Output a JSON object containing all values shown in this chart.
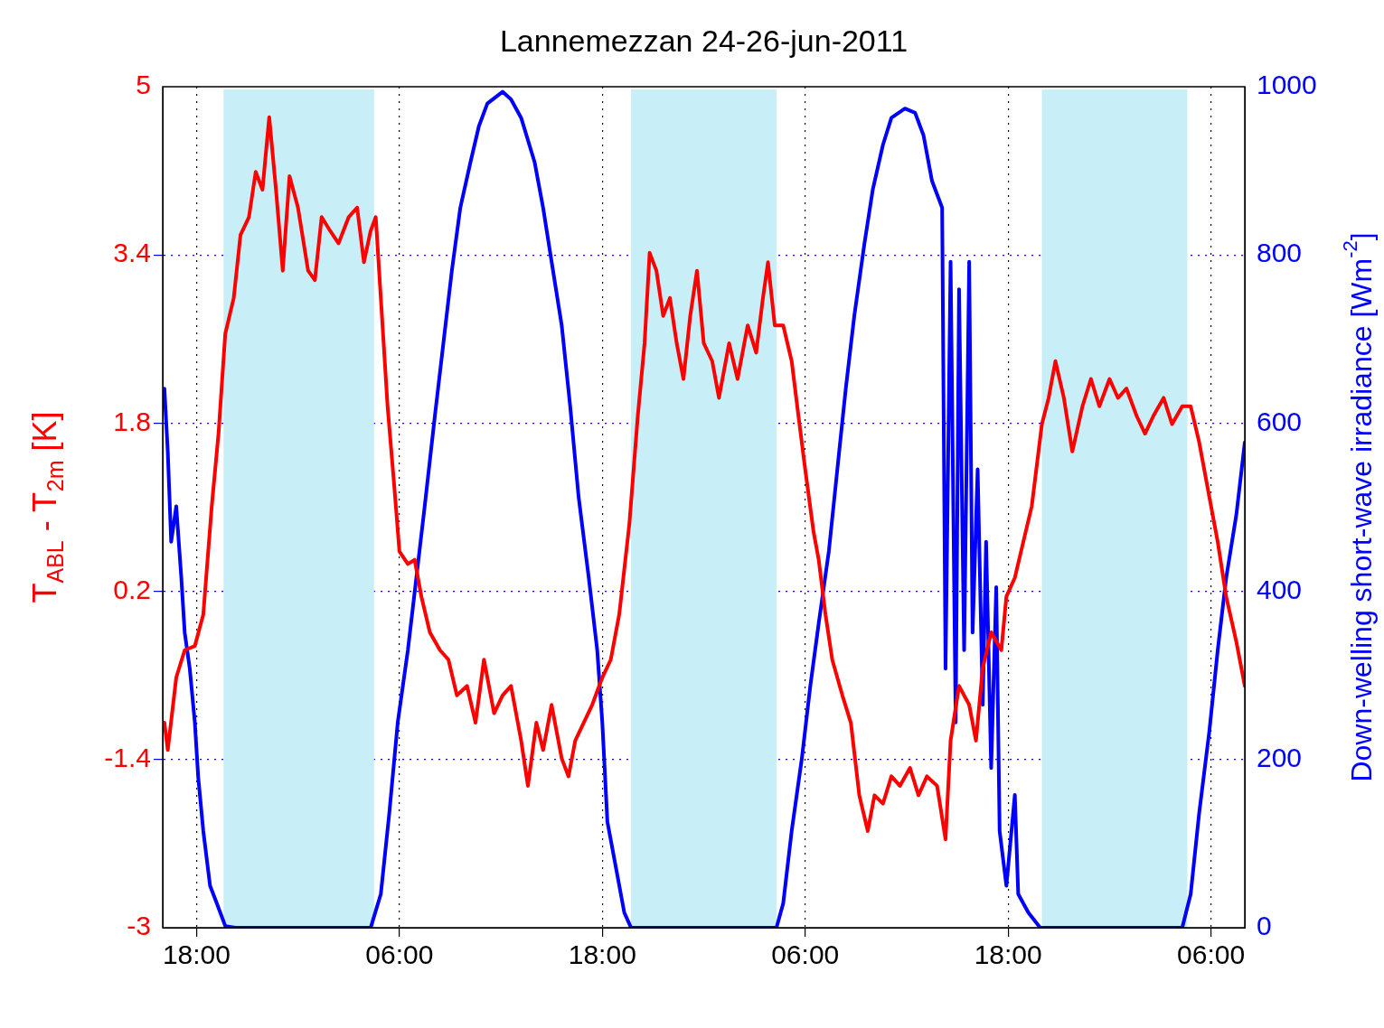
{
  "chart_data": {
    "type": "line",
    "title": "Lannemezzan 24-26-jun-2011",
    "ylabel": "T$_{ABL}$ - T$_{2m}$ [K]",
    "y2label": "Down-welling short-wave irradiance [Wm$^{-2}$]",
    "xlim": [
      "2011-06-24T16:00",
      "2011-06-27T08:00"
    ],
    "xticks": [
      {
        "value": "2011-06-24T18:00",
        "label": "18:00"
      },
      {
        "value": "2011-06-25T06:00",
        "label": "06:00"
      },
      {
        "value": "2011-06-25T18:00",
        "label": "18:00"
      },
      {
        "value": "2011-06-26T06:00",
        "label": "06:00"
      },
      {
        "value": "2011-06-26T18:00",
        "label": "18:00"
      },
      {
        "value": "2011-06-27T06:00",
        "label": "06:00"
      }
    ],
    "ylim": [
      -3,
      5
    ],
    "yticks": [
      -3,
      -1.4,
      0.2,
      1.8,
      3.4,
      5
    ],
    "y2lim": [
      0,
      1000
    ],
    "y2ticks": [
      0,
      200,
      400,
      600,
      800,
      1000
    ],
    "grid": true,
    "legend": false,
    "marker": "none",
    "line_style": "solid",
    "bands": [
      {
        "axis": "x",
        "from": "2011-06-24T19:36",
        "to": "2011-06-25T04:30",
        "color": "#c8eef8"
      },
      {
        "axis": "x",
        "from": "2011-06-25T19:42",
        "to": "2011-06-26T04:18",
        "color": "#c8eef8"
      },
      {
        "axis": "x",
        "from": "2011-06-26T20:00",
        "to": "2011-06-27T04:36",
        "color": "#c8eef8"
      }
    ],
    "series": [
      {
        "color": "#ff0000",
        "x": [
          "2011-06-24T16:06",
          "2011-06-24T16:18",
          "2011-06-24T16:48",
          "2011-06-24T17:18",
          "2011-06-24T17:54",
          "2011-06-24T18:24",
          "2011-06-24T18:54",
          "2011-06-24T19:18",
          "2011-06-24T19:42",
          "2011-06-24T20:12",
          "2011-06-24T20:36",
          "2011-06-24T21:06",
          "2011-06-24T21:30",
          "2011-06-24T21:54",
          "2011-06-24T22:18",
          "2011-06-24T22:42",
          "2011-06-24T23:06",
          "2011-06-24T23:30",
          "2011-06-25T00:00",
          "2011-06-25T00:36",
          "2011-06-25T01:00",
          "2011-06-25T01:24",
          "2011-06-25T01:54",
          "2011-06-25T02:24",
          "2011-06-25T03:00",
          "2011-06-25T03:30",
          "2011-06-25T03:54",
          "2011-06-25T04:18",
          "2011-06-25T04:36",
          "2011-06-25T04:54",
          "2011-06-25T05:18",
          "2011-06-25T05:42",
          "2011-06-25T06:00",
          "2011-06-25T06:30",
          "2011-06-25T06:54",
          "2011-06-25T07:18",
          "2011-06-25T07:48",
          "2011-06-25T08:24",
          "2011-06-25T08:54",
          "2011-06-25T09:24",
          "2011-06-25T10:00",
          "2011-06-25T10:30",
          "2011-06-25T11:00",
          "2011-06-25T11:36",
          "2011-06-25T12:06",
          "2011-06-25T12:36",
          "2011-06-25T13:12",
          "2011-06-25T13:36",
          "2011-06-25T14:06",
          "2011-06-25T14:30",
          "2011-06-25T15:00",
          "2011-06-25T15:36",
          "2011-06-25T16:00",
          "2011-06-25T16:24",
          "2011-06-25T16:54",
          "2011-06-25T17:24",
          "2011-06-25T18:00",
          "2011-06-25T18:30",
          "2011-06-25T19:00",
          "2011-06-25T19:36",
          "2011-06-25T20:06",
          "2011-06-25T20:30",
          "2011-06-25T20:48",
          "2011-06-25T21:12",
          "2011-06-25T21:36",
          "2011-06-25T22:00",
          "2011-06-25T22:24",
          "2011-06-25T22:48",
          "2011-06-25T23:12",
          "2011-06-25T23:36",
          "2011-06-26T00:00",
          "2011-06-26T00:30",
          "2011-06-26T00:54",
          "2011-06-26T01:30",
          "2011-06-26T02:00",
          "2011-06-26T02:36",
          "2011-06-26T03:06",
          "2011-06-26T03:30",
          "2011-06-26T03:48",
          "2011-06-26T04:12",
          "2011-06-26T04:42",
          "2011-06-26T05:12",
          "2011-06-26T05:36",
          "2011-06-26T06:00",
          "2011-06-26T06:30",
          "2011-06-26T06:48",
          "2011-06-26T07:12",
          "2011-06-26T07:36",
          "2011-06-26T08:12",
          "2011-06-26T08:42",
          "2011-06-26T09:12",
          "2011-06-26T09:42",
          "2011-06-26T10:06",
          "2011-06-26T10:36",
          "2011-06-26T11:06",
          "2011-06-26T11:36",
          "2011-06-26T12:12",
          "2011-06-26T12:42",
          "2011-06-26T13:12",
          "2011-06-26T13:48",
          "2011-06-26T14:18",
          "2011-06-26T14:36",
          "2011-06-26T15:06",
          "2011-06-26T15:42",
          "2011-06-26T16:06",
          "2011-06-26T16:30",
          "2011-06-26T17:00",
          "2011-06-26T17:36",
          "2011-06-26T17:54",
          "2011-06-26T18:24",
          "2011-06-26T18:54",
          "2011-06-26T19:24",
          "2011-06-26T20:00",
          "2011-06-26T20:24",
          "2011-06-26T20:48",
          "2011-06-26T21:18",
          "2011-06-26T21:48",
          "2011-06-26T22:24",
          "2011-06-26T22:54",
          "2011-06-26T23:24",
          "2011-06-27T00:00",
          "2011-06-27T00:30",
          "2011-06-27T01:00",
          "2011-06-27T01:36",
          "2011-06-27T02:06",
          "2011-06-27T02:36",
          "2011-06-27T03:12",
          "2011-06-27T03:42",
          "2011-06-27T04:18",
          "2011-06-27T04:48",
          "2011-06-27T05:18",
          "2011-06-27T05:54",
          "2011-06-27T06:24",
          "2011-06-27T06:54",
          "2011-06-27T07:30",
          "2011-06-27T08:00"
        ],
        "values": [
          -1.05,
          -1.31,
          -0.62,
          -0.36,
          -0.32,
          -0.02,
          1.01,
          1.7,
          2.65,
          2.99,
          3.59,
          3.76,
          4.19,
          4.02,
          4.71,
          4.02,
          3.25,
          4.15,
          3.85,
          3.25,
          3.16,
          3.76,
          3.63,
          3.51,
          3.76,
          3.85,
          3.33,
          3.63,
          3.76,
          2.99,
          1.96,
          1.19,
          0.58,
          0.46,
          0.5,
          0.15,
          -0.19,
          -0.36,
          -0.45,
          -0.79,
          -0.7,
          -1.05,
          -0.45,
          -0.96,
          -0.79,
          -0.7,
          -1.22,
          -1.65,
          -1.05,
          -1.31,
          -0.88,
          -1.39,
          -1.56,
          -1.22,
          -1.05,
          -0.88,
          -0.62,
          -0.45,
          -0.02,
          0.84,
          1.87,
          2.56,
          3.42,
          3.25,
          2.82,
          2.99,
          2.56,
          2.22,
          2.82,
          3.25,
          2.56,
          2.39,
          2.04,
          2.56,
          2.22,
          2.73,
          2.47,
          2.99,
          3.33,
          2.73,
          2.73,
          2.39,
          1.87,
          1.36,
          0.76,
          0.5,
          -0.02,
          -0.45,
          -0.79,
          -1.05,
          -1.74,
          -2.08,
          -1.74,
          -1.82,
          -1.56,
          -1.65,
          -1.48,
          -1.74,
          -1.56,
          -1.65,
          -2.16,
          -1.22,
          -0.7,
          -0.88,
          -1.22,
          -0.53,
          -0.19,
          -0.36,
          0.15,
          0.33,
          0.67,
          1.01,
          1.79,
          2.04,
          2.39,
          2.04,
          1.53,
          1.96,
          2.22,
          1.96,
          2.22,
          2.04,
          2.13,
          1.87,
          1.7,
          1.87,
          2.04,
          1.79,
          1.96,
          1.96,
          1.62,
          1.1,
          0.67,
          0.15,
          -0.28,
          -0.7
        ]
      },
      {
        "color": "#0000ff",
        "axis": "y2",
        "x": [
          "2011-06-24T16:06",
          "2011-06-24T16:18",
          "2011-06-24T16:30",
          "2011-06-24T16:48",
          "2011-06-24T17:06",
          "2011-06-24T17:18",
          "2011-06-24T17:36",
          "2011-06-24T17:54",
          "2011-06-24T18:06",
          "2011-06-24T18:24",
          "2011-06-24T18:48",
          "2011-06-24T19:12",
          "2011-06-24T19:42",
          "2011-06-24T20:18",
          "2011-06-25T04:18",
          "2011-06-25T04:54",
          "2011-06-25T05:24",
          "2011-06-25T05:54",
          "2011-06-25T06:30",
          "2011-06-25T07:00",
          "2011-06-25T07:30",
          "2011-06-25T08:06",
          "2011-06-25T08:36",
          "2011-06-25T09:06",
          "2011-06-25T09:36",
          "2011-06-25T10:12",
          "2011-06-25T10:42",
          "2011-06-25T11:12",
          "2011-06-25T12:06",
          "2011-06-25T12:36",
          "2011-06-25T13:12",
          "2011-06-25T14:00",
          "2011-06-25T14:30",
          "2011-06-25T15:00",
          "2011-06-25T15:36",
          "2011-06-25T16:06",
          "2011-06-25T16:36",
          "2011-06-25T17:12",
          "2011-06-25T17:42",
          "2011-06-25T18:00",
          "2011-06-25T18:18",
          "2011-06-25T18:48",
          "2011-06-25T19:18",
          "2011-06-25T19:42",
          "2011-06-26T04:18",
          "2011-06-26T04:42",
          "2011-06-26T05:12",
          "2011-06-26T05:48",
          "2011-06-26T06:18",
          "2011-06-26T06:48",
          "2011-06-26T07:24",
          "2011-06-26T07:54",
          "2011-06-26T08:24",
          "2011-06-26T08:54",
          "2011-06-26T09:30",
          "2011-06-26T10:00",
          "2011-06-26T10:36",
          "2011-06-26T11:06",
          "2011-06-26T11:54",
          "2011-06-26T12:30",
          "2011-06-26T13:00",
          "2011-06-26T13:30",
          "2011-06-26T14:06",
          "2011-06-26T14:18",
          "2011-06-26T14:36",
          "2011-06-26T14:54",
          "2011-06-26T15:06",
          "2011-06-26T15:24",
          "2011-06-26T15:42",
          "2011-06-26T15:54",
          "2011-06-26T16:12",
          "2011-06-26T16:30",
          "2011-06-26T16:42",
          "2011-06-26T17:00",
          "2011-06-26T17:18",
          "2011-06-26T17:30",
          "2011-06-26T17:54",
          "2011-06-26T18:24",
          "2011-06-26T18:36",
          "2011-06-26T19:12",
          "2011-06-26T19:54",
          "2011-06-27T04:18",
          "2011-06-27T04:48",
          "2011-06-27T05:18",
          "2011-06-27T05:54",
          "2011-06-27T06:24",
          "2011-06-27T06:54",
          "2011-06-27T07:30",
          "2011-06-27T08:00"
        ],
        "values": [
          641,
          566,
          459,
          501,
          416,
          351,
          308,
          244,
          179,
          115,
          50,
          29,
          2,
          0,
          0,
          40,
          136,
          244,
          330,
          416,
          502,
          609,
          695,
          781,
          856,
          910,
          953,
          980,
          994,
          985,
          963,
          910,
          856,
          792,
          716,
          620,
          512,
          416,
          330,
          244,
          126,
          72,
          18,
          0,
          0,
          29,
          115,
          201,
          287,
          362,
          448,
          545,
          641,
          727,
          813,
          878,
          931,
          963,
          974,
          969,
          942,
          888,
          856,
          308,
          792,
          244,
          759,
          330,
          792,
          351,
          545,
          265,
          459,
          190,
          405,
          115,
          50,
          158,
          40,
          18,
          0,
          0,
          40,
          136,
          233,
          330,
          416,
          491,
          577
        ]
      }
    ]
  }
}
